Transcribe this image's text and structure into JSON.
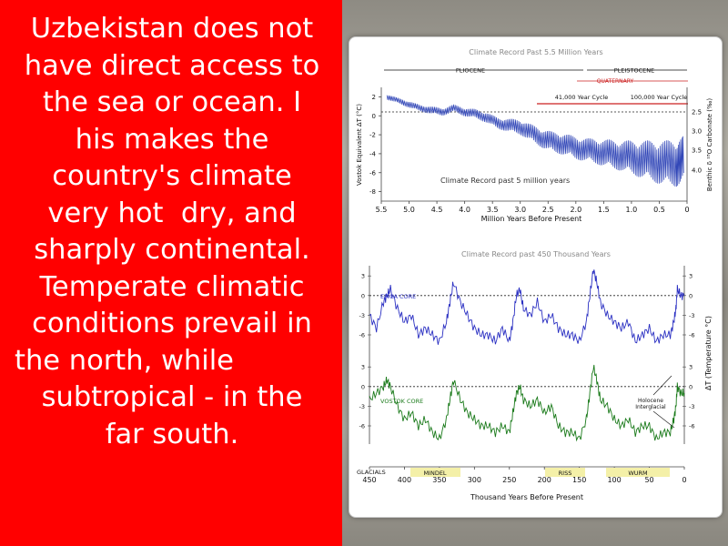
{
  "slide": {
    "text_lines": [
      "Uzbekistan does not",
      "have direct access to",
      "the sea or ocean. I",
      "his makes the",
      "country's climate",
      "very hot  dry, and",
      "sharply continental.",
      "Temperate climatic",
      "conditions prevail in",
      "the north, while",
      "subtropical - in the",
      "far south."
    ],
    "colors": {
      "panel": "#ff0000",
      "text": "#ffffff"
    }
  },
  "chart_data": [
    {
      "type": "line",
      "title": "Climate Record Past 5.5 Million Years",
      "annotation": "Climate Record past 5 million years",
      "periods": [
        "PLIOCENE",
        "PLEISTOCENE",
        "QUATERNARY"
      ],
      "cycles": [
        "41,000 Year Cycle",
        "100,000 Year Cycle"
      ],
      "xlabel": "Million Years Before Present",
      "ylabel": "Vostok Equivalent ΔT (°C)",
      "ylabel_right": "Benthic δ ¹⁸O Carbonate (‰)",
      "x_ticks": [
        "5.5",
        "5.0",
        "4.5",
        "4.0",
        "3.5",
        "3.0",
        "2.5",
        "2.0",
        "1.5",
        "1.0",
        "0.5",
        "0"
      ],
      "y_ticks": [
        "2",
        "0",
        "-2",
        "-4",
        "-6",
        "-8"
      ],
      "y_right_ticks": [
        "2.5",
        "3.0",
        "3.5",
        "4.0"
      ],
      "xlim": [
        5.5,
        0
      ],
      "ylim": [
        -9,
        3
      ],
      "series": [
        {
          "color": "#3348b8",
          "x": [
            5.4,
            5.2,
            5.0,
            4.8,
            4.6,
            4.4,
            4.2,
            4.0,
            3.8,
            3.6,
            3.4,
            3.2,
            3.0,
            2.8,
            2.6,
            2.4,
            2.2,
            2.0,
            1.8,
            1.6,
            1.4,
            1.2,
            1.0,
            0.8,
            0.6,
            0.4,
            0.2,
            0.05
          ],
          "y": [
            2.0,
            1.6,
            1.2,
            0.8,
            0.6,
            0.4,
            0.8,
            0.4,
            0.2,
            -0.2,
            -0.8,
            -1.0,
            -1.2,
            -1.8,
            -2.4,
            -2.8,
            -3.0,
            -3.4,
            -3.6,
            -3.8,
            -4.0,
            -4.2,
            -4.4,
            -4.6,
            -4.8,
            -5.0,
            -5.0,
            -4.6
          ],
          "swing": [
            0.6,
            0.6,
            0.7,
            0.7,
            0.8,
            0.8,
            0.8,
            0.9,
            1.0,
            1.1,
            1.2,
            1.4,
            1.6,
            1.8,
            2.0,
            2.2,
            2.3,
            2.4,
            2.5,
            2.7,
            3.0,
            3.2,
            3.6,
            4.0,
            4.4,
            4.8,
            5.0,
            5.0
          ]
        }
      ]
    },
    {
      "type": "line",
      "title": "Climate Record past 450 Thousand Years",
      "xlabel": "Thousand Years Before Present",
      "ylabel_right": "ΔT (Temperature °C)",
      "x_ticks": [
        "450",
        "400",
        "350",
        "300",
        "250",
        "200",
        "150",
        "100",
        "50",
        "0"
      ],
      "xlim": [
        450,
        0
      ],
      "glacials": [
        "GLACIALS",
        "MINDEL",
        "RISS",
        "WURM"
      ],
      "annotations": [
        "Holocene",
        "Interglacial"
      ],
      "series": [
        {
          "name": "EPICA CORE",
          "color": "#2a2fc2",
          "y_ticks": [
            "3",
            "0",
            "-3",
            "-6"
          ],
          "ylim": [
            -9,
            4
          ],
          "x": [
            450,
            440,
            430,
            425,
            420,
            410,
            400,
            390,
            380,
            370,
            360,
            350,
            340,
            335,
            330,
            320,
            310,
            300,
            290,
            280,
            270,
            260,
            250,
            245,
            240,
            235,
            230,
            220,
            210,
            200,
            190,
            180,
            170,
            160,
            150,
            140,
            135,
            130,
            125,
            120,
            110,
            100,
            90,
            80,
            70,
            60,
            50,
            40,
            30,
            20,
            15,
            12,
            10,
            5,
            0
          ],
          "y": [
            -3,
            -5,
            -1,
            0,
            1,
            -2,
            -4,
            -3,
            -6,
            -5,
            -6,
            -7,
            -4,
            -1,
            2,
            -1,
            -3,
            -5,
            -6,
            -6,
            -7,
            -5,
            -7,
            -4,
            0,
            1,
            -2,
            -3,
            -1,
            -4,
            -3,
            -5,
            -6,
            -6,
            -7,
            -4,
            0,
            4,
            2,
            -1,
            -3,
            -4,
            -5,
            -4,
            -7,
            -6,
            -5,
            -7,
            -6,
            -6,
            -4,
            -2,
            1,
            0,
            0
          ]
        },
        {
          "name": "VOSTOK CORE",
          "color": "#1a7a1a",
          "y_ticks": [
            "3",
            "0",
            "-3",
            "-6"
          ],
          "ylim": [
            -9,
            4
          ],
          "x": [
            450,
            440,
            430,
            425,
            420,
            410,
            400,
            390,
            380,
            370,
            360,
            350,
            340,
            335,
            330,
            320,
            310,
            300,
            290,
            280,
            270,
            260,
            250,
            245,
            240,
            235,
            230,
            220,
            210,
            200,
            190,
            180,
            170,
            160,
            150,
            140,
            135,
            130,
            125,
            120,
            110,
            100,
            90,
            80,
            70,
            60,
            50,
            40,
            30,
            20,
            15,
            12,
            10,
            5,
            0
          ],
          "y": [
            -2,
            -1,
            0,
            1,
            0,
            -3,
            -5,
            -4,
            -6,
            -5,
            -7,
            -8,
            -5,
            -2,
            1,
            -2,
            -4,
            -5,
            -6,
            -6,
            -7,
            -6,
            -7,
            -4,
            -1,
            0,
            -2,
            -3,
            -2,
            -4,
            -3,
            -6,
            -7,
            -7,
            -8,
            -5,
            -1,
            3,
            1,
            -2,
            -3,
            -5,
            -6,
            -5,
            -7,
            -6,
            -6,
            -8,
            -7,
            -7,
            -5,
            -3,
            0,
            -1,
            -1
          ]
        }
      ]
    }
  ]
}
